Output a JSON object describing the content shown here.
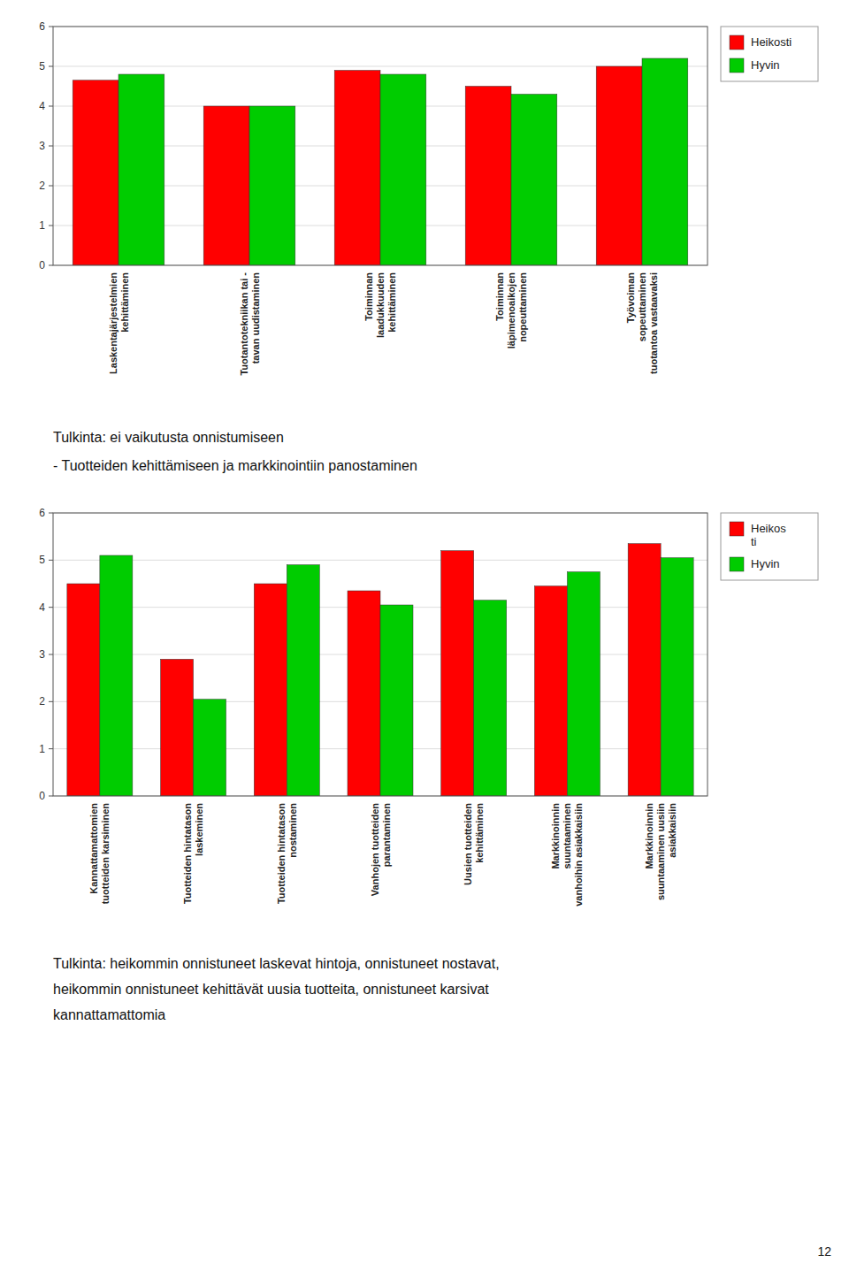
{
  "chart_data": [
    {
      "type": "bar",
      "categories": [
        "Laskentajärjestelmien\nkehittäminen",
        "Tuotantotekniikan tai -\ntavan uudistaminen",
        "Toiminnan\nlaadukkuuden\nkehittäminen",
        "Toiminnan\nläpimenoaikojen\nnopeuttaminen",
        "Työvoiman\nsopeuttaminen\ntuotantoa vastaavaksi"
      ],
      "series": [
        {
          "name": "Heikosti",
          "color": "#FF0000",
          "values": [
            4.65,
            4.0,
            4.9,
            4.5,
            5.0
          ]
        },
        {
          "name": "Hyvin",
          "color": "#00CC00",
          "values": [
            4.8,
            4.0,
            4.8,
            4.3,
            5.2
          ]
        }
      ],
      "ylim": [
        0,
        6
      ],
      "yticks": [
        0,
        1,
        2,
        3,
        4,
        5,
        6
      ],
      "grid": true,
      "legend": "upper right",
      "annotations": [
        "Tulkinta: ei vaikutusta onnistumiseen",
        "- Tuotteiden kehittämiseen ja markkinointiin panostaminen"
      ]
    },
    {
      "type": "bar",
      "categories": [
        "Kannattamattomien\ntuotteiden karsiminen",
        "Tuotteiden hintatason\nlaskeminen",
        "Tuotteiden hintatason\nnostaminen",
        "Vanhojen tuotteiden\nparantaminen",
        "Uusien tuotteiden\nkehittäminen",
        "Markkinoinnin\nsuuntaaminen\nvanhoihin asiakkaisiin",
        "Markkinoinnin\nsuuntaaminen uusiin\nasiakkaisiin"
      ],
      "series": [
        {
          "name": "Heikos\nti",
          "color": "#FF0000",
          "values": [
            4.5,
            2.9,
            4.5,
            4.35,
            5.2,
            4.45,
            5.35
          ]
        },
        {
          "name": "Hyvin",
          "color": "#00CC00",
          "values": [
            5.1,
            2.05,
            4.9,
            4.05,
            4.15,
            4.75,
            5.05
          ]
        }
      ],
      "ylim": [
        0,
        6
      ],
      "yticks": [
        0,
        1,
        2,
        3,
        4,
        5,
        6
      ],
      "grid": true,
      "legend": "upper right",
      "annotations": [
        "Tulkinta: heikommin onnistuneet laskevat hintoja, onnistuneet nostavat,\nheikommin onnistuneet kehittävät uusia tuotteita, onnistuneet karsivat\nkannattamattomia",
        "12"
      ]
    }
  ]
}
